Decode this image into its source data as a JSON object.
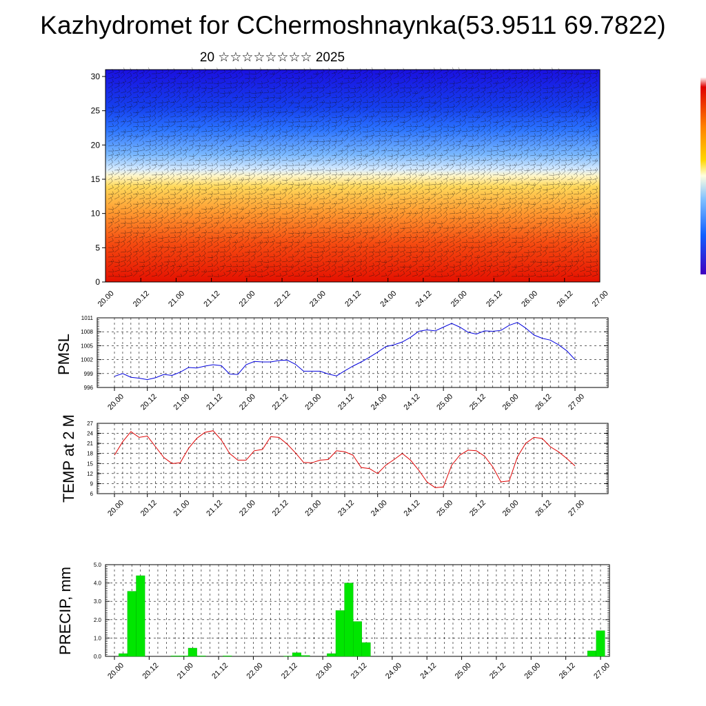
{
  "header": {
    "title": "Kazhydromet for CChermoshnaynka(53.9511 69.7822)",
    "subtitle": "20 ☆☆☆☆☆☆☆☆ 2025"
  },
  "time_ticks": [
    "20.00",
    "20.12",
    "21.00",
    "21.12",
    "22.00",
    "22.12",
    "23.00",
    "23.12",
    "24.00",
    "24.12",
    "25.00",
    "25.12",
    "26.00",
    "26.12",
    "27.00"
  ],
  "chart_data": [
    {
      "type": "heatmap",
      "title": "",
      "x": [
        "20.00",
        "20.12",
        "21.00",
        "21.12",
        "22.00",
        "22.12",
        "23.00",
        "23.12",
        "24.00",
        "24.12",
        "25.00",
        "25.12",
        "26.00",
        "26.12",
        "27.00"
      ],
      "y_ticks": [
        0,
        5,
        10,
        15,
        20,
        25,
        30
      ],
      "ylim": [
        0,
        31
      ],
      "colors": {
        "low": "#1a10e0",
        "mid": "#ffffff",
        "high": "#e01000"
      },
      "overlay": "wind barbs"
    },
    {
      "type": "line",
      "ylabel": "PMSL",
      "ylim": [
        996,
        1011
      ],
      "y_ticks": [
        996,
        999,
        1002,
        1005,
        1008,
        1011
      ],
      "series": [
        {
          "color": "#0000dd",
          "values": [
            998.4,
            999.0,
            998.2,
            998.0,
            997.7,
            998.1,
            998.8,
            998.6,
            999.3,
            1000.3,
            1000.2,
            1000.6,
            1000.9,
            1000.7,
            998.9,
            998.8,
            1000.9,
            1001.6,
            1001.5,
            1001.5,
            1001.8,
            1001.9,
            1001.0,
            999.5,
            999.5,
            999.5,
            998.9,
            998.5,
            999.6,
            1000.6,
            1001.5,
            1002.5,
            1003.6,
            1004.8,
            1005.2,
            1005.8,
            1006.8,
            1008.1,
            1008.4,
            1008.2,
            1009.0,
            1009.8,
            1009.0,
            1007.9,
            1007.5,
            1008.2,
            1008.1,
            1008.3,
            1009.4,
            1010.0,
            1008.8,
            1007.3,
            1006.6,
            1006.2,
            1005.2,
            1003.9,
            1002.0
          ]
        }
      ]
    },
    {
      "type": "line",
      "ylabel": "TEMP at 2 M",
      "ylim": [
        6,
        27
      ],
      "y_ticks": [
        6,
        9,
        12,
        15,
        18,
        21,
        24,
        27
      ],
      "series": [
        {
          "color": "#dd0000",
          "values": [
            17.5,
            21.5,
            24.5,
            22.8,
            23.2,
            20.0,
            16.8,
            15.0,
            15.2,
            19.5,
            22.5,
            24.3,
            24.8,
            22.0,
            18.0,
            16.0,
            16.0,
            18.8,
            19.2,
            23.0,
            22.8,
            20.8,
            18.2,
            15.3,
            15.2,
            16.0,
            16.2,
            18.8,
            18.5,
            17.5,
            13.8,
            13.5,
            12.0,
            14.5,
            16.2,
            18.0,
            16.0,
            13.0,
            9.5,
            7.8,
            8.0,
            14.5,
            17.5,
            19.0,
            18.8,
            17.2,
            14.0,
            9.5,
            9.8,
            17.0,
            21.0,
            22.8,
            22.5,
            20.0,
            18.5,
            16.5,
            14.3
          ]
        }
      ]
    },
    {
      "type": "bar",
      "ylabel": "PRECIP, mm",
      "ylim": [
        0,
        5
      ],
      "y_ticks": [
        "0.0",
        "1.0",
        "2.0",
        "3.0",
        "4.0",
        "5.0"
      ],
      "color": "#00e600",
      "values": [
        0,
        0.15,
        3.55,
        4.4,
        0,
        0,
        0,
        0.03,
        0.03,
        0.45,
        0.03,
        0,
        0,
        0.03,
        0,
        0,
        0,
        0,
        0,
        0,
        0.02,
        0.2,
        0.05,
        0,
        0,
        0.15,
        2.5,
        4.0,
        1.9,
        0.75,
        0,
        0,
        0,
        0,
        0,
        0,
        0,
        0,
        0,
        0,
        0,
        0,
        0,
        0,
        0,
        0,
        0,
        0,
        0,
        0,
        0,
        0,
        0,
        0,
        0,
        0.3,
        1.4
      ]
    }
  ],
  "colorbar": {
    "colors": [
      "#ffffff",
      "#e00000",
      "#ff8000",
      "#ffd700",
      "#ffffe0",
      "#80c0ff",
      "#1060ff",
      "#4000c0"
    ]
  }
}
